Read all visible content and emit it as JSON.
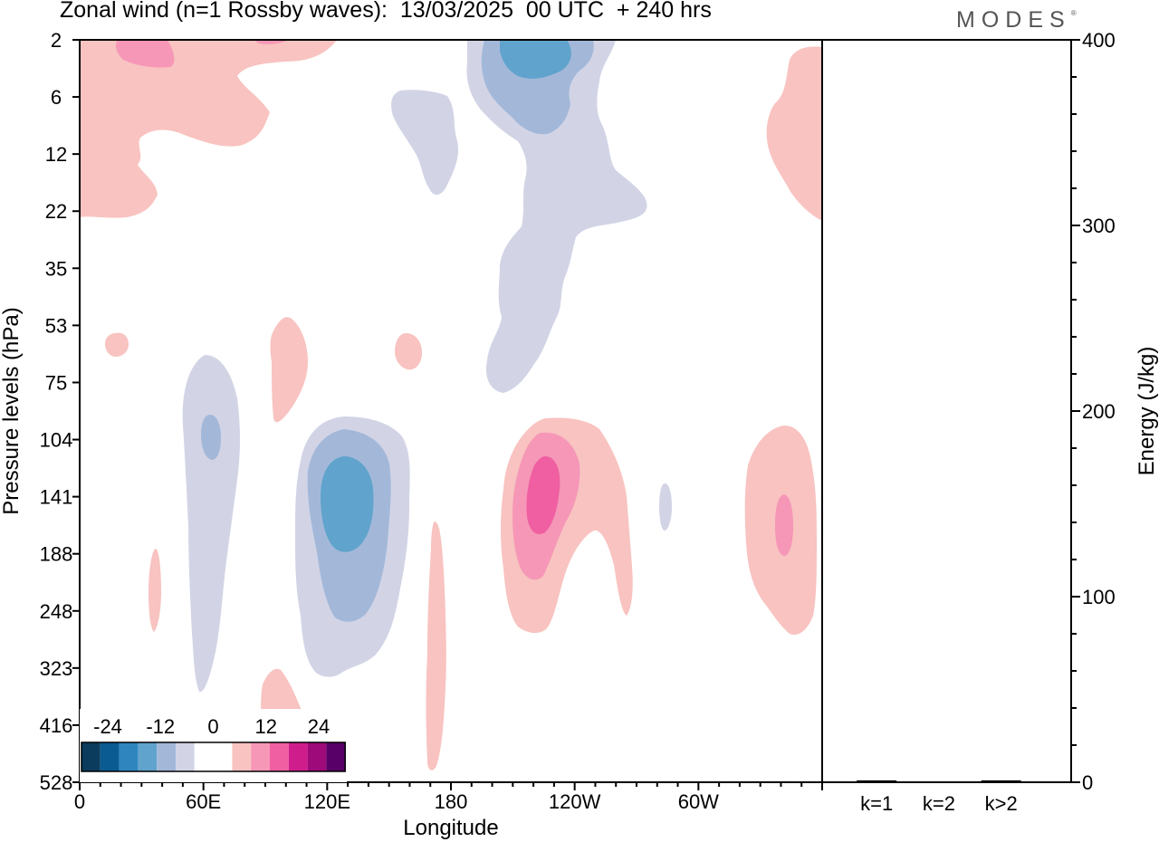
{
  "title": "Zonal wind (n=1 Rossby waves):  13/03/2025  00 UTC  + 240 hrs",
  "logo": "MODES",
  "chart_data": [
    {
      "type": "heatmap",
      "title": "Zonal wind (n=1 Rossby waves):  13/03/2025  00 UTC  + 240 hrs",
      "xlabel": "Longitude",
      "ylabel": "Pressure levels (hPa)",
      "x_ticks": [
        "0",
        "60E",
        "120E",
        "180",
        "120W",
        "60W"
      ],
      "x_tick_degrees": [
        0,
        60,
        120,
        180,
        240,
        300
      ],
      "x_range_degrees": [
        0,
        360
      ],
      "y_ticks": [
        "2",
        "6",
        "12",
        "22",
        "35",
        "53",
        "75",
        "104",
        "141",
        "188",
        "248",
        "323",
        "416",
        "528"
      ],
      "y_scale": "pressure levels, top = 2 hPa, bottom = 528 hPa",
      "grid": false,
      "colorbar": {
        "labels": [
          "-24",
          "-12",
          "0",
          "12",
          "24"
        ],
        "colors": [
          "#0b3c5e",
          "#0a5b92",
          "#2f86bf",
          "#60a3cc",
          "#a3b8d9",
          "#d2d4e6",
          "#ffffff",
          "#ffffff",
          "#f8c3c0",
          "#f697b7",
          "#ef5fa1",
          "#cf1e8c",
          "#9e0a7a",
          "#590068"
        ],
        "placement": "bottom-left"
      },
      "features": [
        {
          "sign": "positive",
          "peak_value": 12,
          "lon_range": [
            0,
            95
          ],
          "level_range": [
            "2",
            "22"
          ]
        },
        {
          "sign": "negative",
          "peak_value": -18,
          "lon_range": [
            200,
            240
          ],
          "level_range": [
            "2",
            "75"
          ]
        },
        {
          "sign": "negative",
          "peak_value": -6,
          "lon_range": [
            150,
            180
          ],
          "level_range": [
            "6",
            "12"
          ]
        },
        {
          "sign": "positive",
          "peak_value": 6,
          "lon_range": [
            335,
            360
          ],
          "level_range": [
            "2",
            "22"
          ]
        },
        {
          "sign": "negative",
          "peak_value": -12,
          "lon_range": [
            50,
            80
          ],
          "level_range": [
            "75",
            "323"
          ]
        },
        {
          "sign": "negative",
          "peak_value": -18,
          "lon_range": [
            105,
            155
          ],
          "level_range": [
            "104",
            "323"
          ]
        },
        {
          "sign": "positive",
          "peak_value": 18,
          "lon_range": [
            205,
            270
          ],
          "level_range": [
            "104",
            "248"
          ]
        },
        {
          "sign": "positive",
          "peak_value": 12,
          "lon_range": [
            320,
            355
          ],
          "level_range": [
            "104",
            "248"
          ]
        },
        {
          "sign": "positive",
          "peak_value": 6,
          "lon_range": [
            92,
            110
          ],
          "level_range": [
            "53",
            "104"
          ]
        },
        {
          "sign": "positive",
          "peak_value": 6,
          "lon_range": [
            88,
            115
          ],
          "level_range": [
            "323",
            "528"
          ]
        },
        {
          "sign": "positive",
          "peak_value": 6,
          "lon_range": [
            170,
            177
          ],
          "level_range": [
            "141",
            "528"
          ]
        },
        {
          "sign": "negative",
          "peak_value": -6,
          "lon_range": [
            283,
            287
          ],
          "level_range": [
            "141",
            "141"
          ]
        },
        {
          "sign": "positive",
          "peak_value": 6,
          "lon_range": [
            12,
            24
          ],
          "level_range": [
            "53",
            "53"
          ]
        },
        {
          "sign": "positive",
          "peak_value": 6,
          "lon_range": [
            154,
            166
          ],
          "level_range": [
            "53",
            "75"
          ]
        },
        {
          "sign": "positive",
          "peak_value": 6,
          "lon_range": [
            33,
            38
          ],
          "level_range": [
            "188",
            "248"
          ]
        }
      ]
    },
    {
      "type": "bar",
      "ylabel": "Energy (J/kg)",
      "categories": [
        "k=1",
        "k=2",
        "k>2"
      ],
      "values": [
        1,
        0,
        1
      ],
      "ylim": [
        0,
        400
      ],
      "y_ticks": [
        "0",
        "100",
        "200",
        "300",
        "400"
      ],
      "grid": false
    }
  ]
}
